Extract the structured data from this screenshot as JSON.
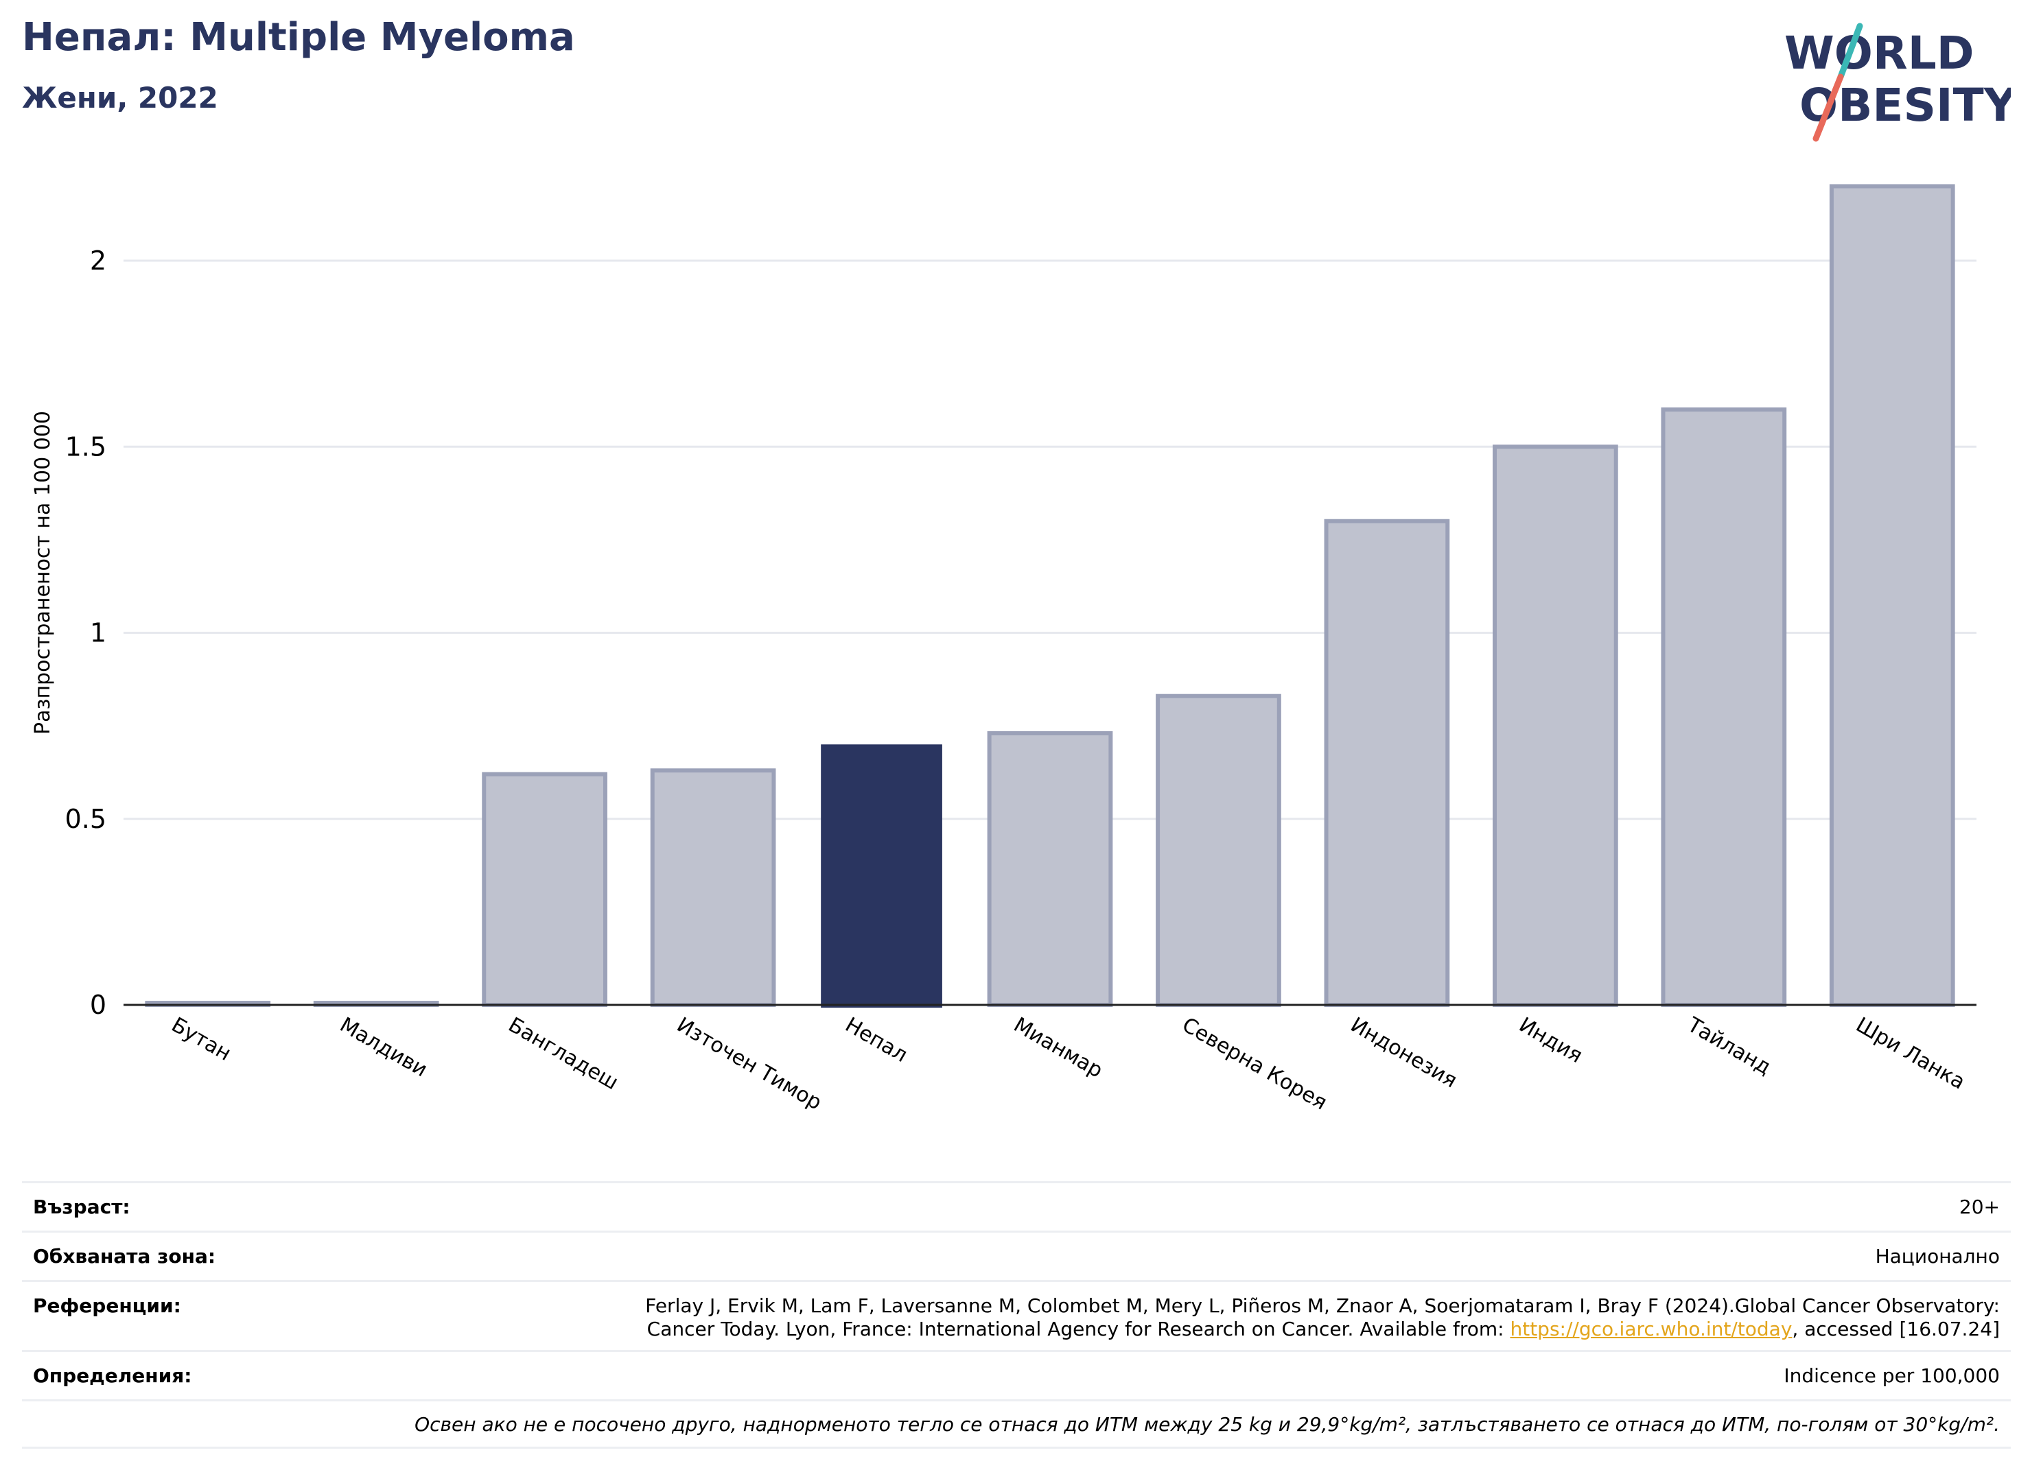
{
  "header": {
    "title": "Непал: Multiple Myeloma",
    "subtitle": "Жени, 2022"
  },
  "logo": {
    "line1": "WORLD",
    "line2": "OBESITY",
    "accent_teal": "#3bb7b5",
    "accent_coral": "#e8695a"
  },
  "chart_data": {
    "type": "bar",
    "categories": [
      "Бутан",
      "Малдиви",
      "Бангладеш",
      "Източен Тимор",
      "Непал",
      "Мианмар",
      "Северна Корея",
      "Индонезия",
      "Индия",
      "Тайланд",
      "Шри Ланка"
    ],
    "values": [
      0.0,
      0.0,
      0.62,
      0.63,
      0.7,
      0.73,
      0.83,
      1.3,
      1.5,
      1.6,
      2.2
    ],
    "highlight": "Непал",
    "ylabel": "Разпространеност  на 100 000",
    "yticks": [
      "0",
      "0.5",
      "1",
      "1.5",
      "2"
    ],
    "ylim": [
      0,
      2.3
    ],
    "grid": true,
    "colors": {
      "bar": "#bfc2cf",
      "bar_edge": "#9ba1b8",
      "highlight": "#2a3560"
    }
  },
  "info": {
    "age_label": "Възраст:",
    "age_value": "20+",
    "coverage_label": "Обхваната зона:",
    "coverage_value": "Национално",
    "refs_label": "Референции:",
    "refs_line1": "Ferlay J, Ervik M, Lam F, Laversanne M, Colombet M, Mery L, Piñeros M, Znaor A, Soerjomataram I, Bray F (2024).Global Cancer Observatory:",
    "refs_line2_pre": "Cancer Today. Lyon, France: International Agency for Research on Cancer. Available from: ",
    "refs_link": "https://gco.iarc.who.int/today",
    "refs_line2_post": ", accessed [16.07.24]",
    "defs_label": "Определения:",
    "defs_value": "Indicence per 100,000",
    "note": "Освен ако не е посочено друго, наднорменото тегло се отнася до ИТМ между 25 kg и 29,9°kg/m², затлъстяването се отнася до ИТМ, по-голям от 30°kg/m²."
  }
}
